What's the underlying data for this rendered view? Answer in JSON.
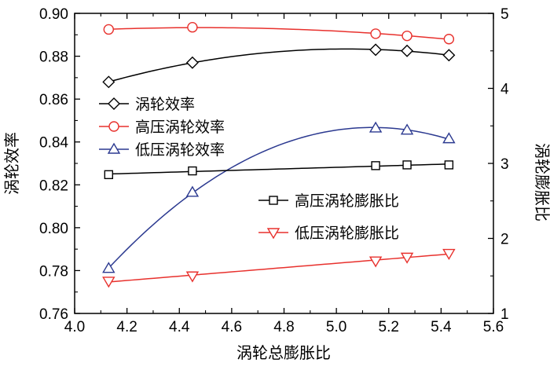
{
  "chart_data": {
    "type": "line",
    "xlabel": "涡轮总膨胀比",
    "ylabel_left": "涡轮效率",
    "ylabel_right": "涡轮膨胀比",
    "xlim": [
      4.0,
      5.6
    ],
    "ylim_left": [
      0.76,
      0.9
    ],
    "ylim_right": [
      1,
      5
    ],
    "x_ticks": [
      "4.0",
      "4.2",
      "4.4",
      "4.6",
      "4.8",
      "5.0",
      "5.2",
      "5.4",
      "5.6"
    ],
    "y_left_ticks": [
      "0.76",
      "0.78",
      "0.80",
      "0.82",
      "0.84",
      "0.86",
      "0.88",
      "0.90"
    ],
    "y_right_ticks": [
      "1",
      "2",
      "3",
      "4",
      "5"
    ],
    "grid": false,
    "legend_placement": [
      "upper-left",
      "center-right"
    ],
    "x": [
      4.13,
      4.45,
      5.15,
      5.27,
      5.43
    ],
    "series": [
      {
        "name": "涡轮效率",
        "axis": "left",
        "marker": "diamond",
        "color": "#000000",
        "values": [
          0.868,
          0.877,
          0.883,
          0.8825,
          0.8805
        ]
      },
      {
        "name": "高压涡轮效率",
        "axis": "left",
        "marker": "circle",
        "color": "#e8312d",
        "values": [
          0.8925,
          0.8935,
          0.8905,
          0.8895,
          0.888
        ]
      },
      {
        "name": "低压涡轮效率",
        "axis": "left",
        "marker": "triangle-up",
        "color": "#2b3990",
        "values": [
          0.781,
          0.8165,
          0.8465,
          0.8455,
          0.8415
        ]
      },
      {
        "name": "高压涡轮膨胀比",
        "axis": "right",
        "marker": "square",
        "color": "#000000",
        "values": [
          2.85,
          2.9,
          2.97,
          2.98,
          2.98
        ]
      },
      {
        "name": "低压涡轮膨胀比",
        "axis": "right",
        "marker": "triangle-down",
        "color": "#e8312d",
        "values": [
          1.43,
          1.5,
          1.7,
          1.75,
          1.8
        ]
      }
    ]
  }
}
